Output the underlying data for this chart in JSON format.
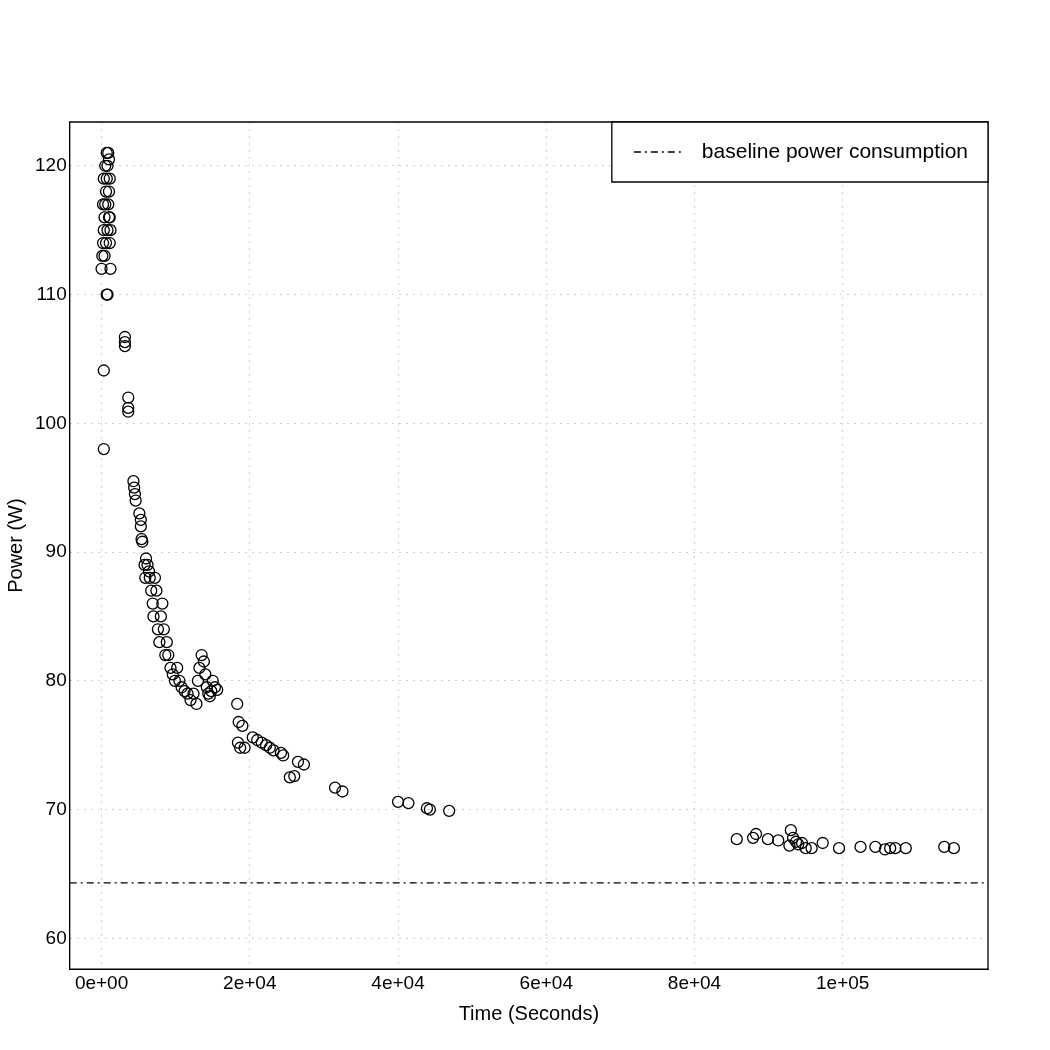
{
  "chart_data": {
    "type": "scatter",
    "xlabel": "Time (Seconds)",
    "ylabel": "Power (W)",
    "x": [
      0,
      100,
      200,
      300,
      400,
      500,
      600,
      700,
      800,
      900,
      1000,
      1100,
      1000,
      900,
      1100,
      1200,
      1100,
      1000,
      800,
      600,
      400,
      200,
      300,
      500,
      700,
      800,
      1200,
      700,
      300,
      300,
      3150,
      3150,
      3150,
      3600,
      3600,
      3600,
      4300,
      4400,
      4500,
      4600,
      5100,
      5300,
      5300,
      5400,
      5500,
      5800,
      5900,
      6000,
      6200,
      6400,
      6500,
      6700,
      6900,
      7000,
      7200,
      7400,
      7600,
      7800,
      8000,
      8200,
      8400,
      8600,
      8800,
      9000,
      9300,
      9600,
      9900,
      10200,
      10500,
      10800,
      11200,
      11600,
      12000,
      12400,
      12800,
      13000,
      13200,
      13500,
      13800,
      14000,
      14200,
      14400,
      14600,
      14800,
      15000,
      15300,
      15600,
      18300,
      18500,
      18400,
      18700,
      19000,
      19300,
      20400,
      21000,
      21600,
      22200,
      22700,
      23200,
      24200,
      24500,
      25400,
      26000,
      26500,
      27300,
      31500,
      32500,
      40000,
      41400,
      43900,
      44300,
      46900,
      85700,
      87900,
      88300,
      89900,
      91300,
      92800,
      93000,
      93300,
      93700,
      94000,
      94500,
      95000,
      95800,
      97300,
      99500,
      102400,
      104400,
      105700,
      106400,
      107100,
      108500,
      113700,
      115000
    ],
    "values": [
      112,
      113,
      114,
      115,
      116,
      117,
      118,
      119,
      120,
      121,
      120.5,
      119,
      118,
      117,
      116,
      115,
      114,
      116,
      115,
      114,
      113,
      117,
      119,
      120,
      121,
      110,
      112,
      110,
      104.1,
      98,
      106.7,
      106.3,
      106,
      102,
      101.2,
      100.9,
      95.5,
      95,
      94.5,
      94,
      93,
      92.5,
      92,
      91,
      90.8,
      89,
      88,
      89.5,
      89,
      88.5,
      88,
      87,
      86,
      85,
      88,
      87,
      84,
      83,
      85,
      86,
      84,
      82,
      83,
      82,
      81,
      80.5,
      80,
      81,
      80,
      79.5,
      79.2,
      79,
      78.5,
      79,
      78.2,
      80,
      81,
      82,
      81.5,
      80.5,
      79.5,
      79,
      78.8,
      79.2,
      80,
      79.5,
      79.3,
      78.2,
      76.8,
      75.2,
      74.8,
      76.5,
      74.8,
      75.6,
      75.4,
      75.2,
      75,
      74.8,
      74.6,
      74.4,
      74.2,
      72.5,
      72.6,
      73.7,
      73.5,
      71.7,
      71.4,
      70.6,
      70.5,
      70.1,
      70,
      69.9,
      67.7,
      67.8,
      68.1,
      67.7,
      67.6,
      67.2,
      68.4,
      67.8,
      67.5,
      67.3,
      67.4,
      67,
      67,
      67.4,
      67,
      67.1,
      67.1,
      66.9,
      67,
      67,
      67,
      67.1,
      67
    ],
    "color": "#000000",
    "marker": "circle",
    "xlim": [
      -4300,
      119600
    ],
    "ylim": [
      57.6,
      123.4
    ],
    "xticks": [
      {
        "value": 0,
        "label": "0e+00"
      },
      {
        "value": 20000,
        "label": "2e+04"
      },
      {
        "value": 40000,
        "label": "4e+04"
      },
      {
        "value": 60000,
        "label": "6e+04"
      },
      {
        "value": 80000,
        "label": "8e+04"
      },
      {
        "value": 100000,
        "label": "1e+05"
      }
    ],
    "yticks": [
      60,
      70,
      80,
      90,
      100,
      110,
      120
    ],
    "grid": true,
    "legend": "top right",
    "ref_lines": [
      {
        "axis": "y",
        "value": 64.3,
        "label": "baseline power consumption",
        "color": "#000000",
        "line_style": "dashdot"
      }
    ]
  }
}
